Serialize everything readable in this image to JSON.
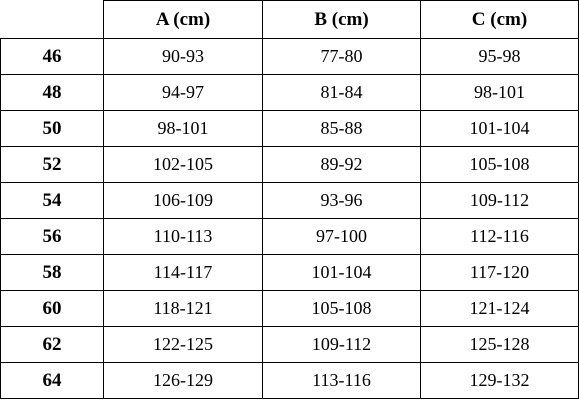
{
  "table": {
    "header": [
      "A (cm)",
      "B (cm)",
      "C (cm)"
    ],
    "rows": [
      {
        "size": "46",
        "cells": [
          "90-93",
          "77-80",
          "95-98"
        ]
      },
      {
        "size": "48",
        "cells": [
          "94-97",
          "81-84",
          "98-101"
        ]
      },
      {
        "size": "50",
        "cells": [
          "98-101",
          "85-88",
          "101-104"
        ]
      },
      {
        "size": "52",
        "cells": [
          "102-105",
          "89-92",
          "105-108"
        ]
      },
      {
        "size": "54",
        "cells": [
          "106-109",
          "93-96",
          "109-112"
        ]
      },
      {
        "size": "56",
        "cells": [
          "110-113",
          "97-100",
          "112-116"
        ]
      },
      {
        "size": "58",
        "cells": [
          "114-117",
          "101-104",
          "117-120"
        ]
      },
      {
        "size": "60",
        "cells": [
          "118-121",
          "105-108",
          "121-124"
        ]
      },
      {
        "size": "62",
        "cells": [
          "122-125",
          "109-112",
          "125-128"
        ]
      },
      {
        "size": "64",
        "cells": [
          "126-129",
          "113-116",
          "129-132"
        ]
      }
    ]
  }
}
